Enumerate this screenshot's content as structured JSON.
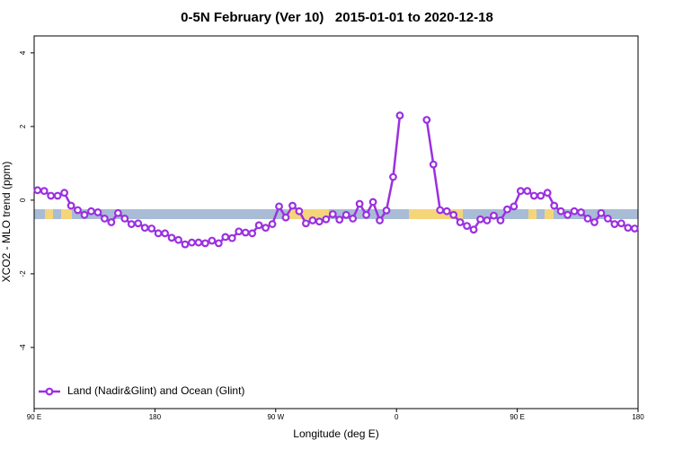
{
  "chart_data": {
    "type": "line",
    "title": "0-5N February (Ver 10)   2015-01-01 to 2020-12-18",
    "xlabel": "Longitude (deg E)",
    "ylabel": "XCO2 - MLO trend (ppm)",
    "xlim": [
      90,
      540
    ],
    "ylim": [
      -5.66,
      4.46
    ],
    "xticks": [
      {
        "value": 90,
        "label": "90 E"
      },
      180,
      {
        "value": 270,
        "label": "90 W"
      },
      {
        "value": 360,
        "label": "0"
      },
      {
        "value": 450,
        "label": "90 E"
      },
      {
        "value": 540,
        "label": "180"
      }
    ],
    "yticks": [
      4,
      2,
      0,
      -2,
      -4
    ],
    "legend": "bottom-left",
    "x": [
      92.5,
      97.5,
      102.5,
      107.5,
      112.5,
      117.5,
      122.5,
      127.5,
      132.5,
      137.5,
      142.5,
      147.5,
      152.5,
      157.5,
      162.5,
      167.5,
      172.5,
      177.5,
      182.5,
      187.5,
      192.5,
      197.5,
      202.5,
      207.5,
      212.5,
      217.5,
      222.5,
      227.5,
      232.5,
      237.5,
      242.5,
      247.5,
      252.5,
      257.5,
      262.5,
      267.5,
      272.5,
      277.5,
      282.5,
      287.5,
      292.5,
      297.5,
      302.5,
      307.5,
      312.5,
      317.5,
      322.5,
      327.5,
      332.5,
      337.5,
      342.5,
      347.5,
      352.5,
      357.5,
      362.5,
      367.5,
      372.5,
      377.5,
      382.5,
      387.5,
      392.5,
      397.5,
      402.5,
      407.5,
      412.5,
      417.5,
      422.5,
      427.5,
      432.5,
      437.5,
      442.5,
      447.5,
      452.5,
      457.5,
      462.5,
      467.5,
      472.5,
      477.5,
      482.5,
      487.5,
      492.5,
      497.5,
      502.5,
      507.5,
      512.5,
      517.5,
      522.5,
      527.5,
      532.5,
      537.5
    ],
    "series": [
      {
        "name": "Land (Nadir&Glint) and Ocean (Glint)",
        "color": "#9b30e0",
        "values": [
          0.27,
          0.25,
          0.12,
          0.12,
          0.2,
          -0.15,
          -0.27,
          -0.4,
          -0.3,
          -0.33,
          -0.5,
          -0.6,
          -0.35,
          -0.5,
          -0.65,
          -0.63,
          -0.75,
          -0.77,
          -0.9,
          -0.9,
          -1.02,
          -1.08,
          -1.2,
          -1.15,
          -1.15,
          -1.17,
          -1.1,
          -1.17,
          -1.0,
          -1.03,
          -0.85,
          -0.88,
          -0.9,
          -0.68,
          -0.75,
          -0.65,
          -0.17,
          -0.47,
          -0.15,
          -0.3,
          -0.63,
          -0.55,
          -0.58,
          -0.52,
          -0.38,
          -0.53,
          -0.4,
          -0.5,
          -0.1,
          -0.4,
          -0.05,
          -0.55,
          -0.28,
          0.63,
          2.3,
          null,
          null,
          null,
          2.18,
          0.97,
          -0.27,
          -0.3,
          -0.4,
          -0.6,
          -0.7,
          -0.8,
          -0.52,
          -0.55,
          -0.42,
          -0.55,
          -0.25,
          -0.17,
          0.25,
          0.25,
          0.12,
          0.12,
          0.2,
          -0.15,
          -0.3,
          -0.4,
          -0.3,
          -0.33,
          -0.5,
          -0.6,
          -0.35,
          -0.5,
          -0.65,
          -0.63,
          -0.75,
          -0.77
        ]
      }
    ]
  }
}
